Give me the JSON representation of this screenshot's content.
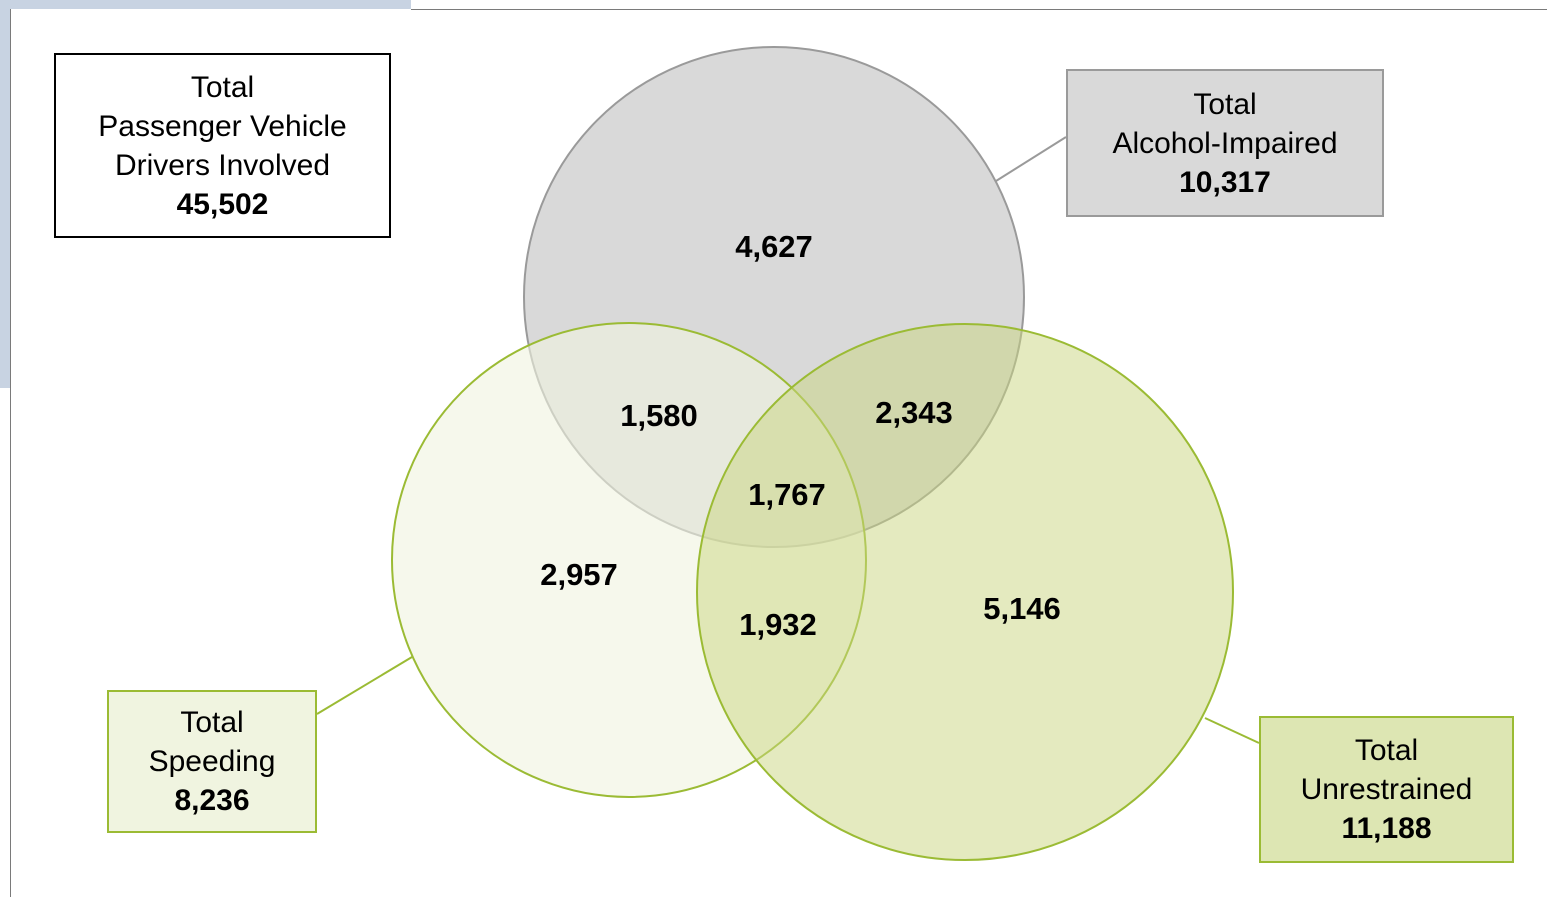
{
  "total_box": {
    "title_line1": "Total",
    "title_line2": "Passenger Vehicle",
    "title_line3": "Drivers Involved",
    "value": "45,502"
  },
  "alcohol_box": {
    "title_line1": "Total",
    "title_line2": "Alcohol-Impaired",
    "value": "10,317"
  },
  "speeding_box": {
    "title_line1": "Total",
    "title_line2": "Speeding",
    "value": "8,236"
  },
  "unrestrained_box": {
    "title_line1": "Total",
    "title_line2": "Unrestrained",
    "value": "11,188"
  },
  "regions": {
    "alcohol_only": "4,627",
    "alcohol_speeding": "1,580",
    "alcohol_unrestrained": "2,343",
    "all_three": "1,767",
    "speeding_only": "2,957",
    "speeding_unrestrained": "1,932",
    "unrestrained_only": "5,146"
  },
  "colors": {
    "alcohol_fill": "#d9d9d9",
    "alcohol_stroke": "#9a9a9a",
    "speeding_fill": "#f0f4e0",
    "unrestrained_fill": "#dde6b3",
    "green_stroke": "#9bbb34",
    "stripe": "#c8d3e2"
  }
}
